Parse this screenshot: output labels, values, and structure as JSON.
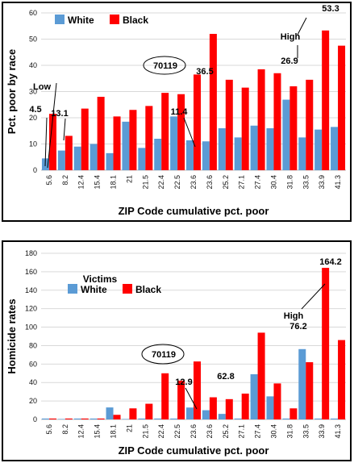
{
  "colors": {
    "white_series": "#5b9bd5",
    "black_series": "#ff0000",
    "grid": "#d9d9d9"
  },
  "chart_data": [
    {
      "type": "bar",
      "ylabel": "Pct. poor by race",
      "xlabel": "ZIP Code cumulative pct. poor",
      "ylim": [
        0,
        60
      ],
      "yticks": [
        0,
        10,
        20,
        30,
        40,
        50,
        60
      ],
      "grid": true,
      "legend_position": "top-left",
      "categories": [
        "5.6",
        "8.2",
        "12.4",
        "15.4",
        "18.1",
        "21",
        "21.5",
        "22.4",
        "22.5",
        "23.6",
        "23.6",
        "25.2",
        "27.1",
        "27.4",
        "30.4",
        "31.8",
        "33.5",
        "33.9",
        "41.3"
      ],
      "series": [
        {
          "name": "White",
          "values": [
            4.5,
            7.5,
            9,
            10,
            6.5,
            18.5,
            8.5,
            12,
            20.5,
            11.4,
            11,
            16,
            12.5,
            17,
            16,
            26.9,
            12.5,
            15.5,
            16.5
          ]
        },
        {
          "name": "Black",
          "values": [
            21.5,
            13.1,
            23.5,
            28,
            20.5,
            23,
            24.5,
            29.5,
            29,
            36.5,
            52,
            34.5,
            31.5,
            38.5,
            37,
            32,
            34.5,
            53.3,
            47.5
          ]
        }
      ],
      "annotations": [
        {
          "text": "Low"
        },
        {
          "text": "4.5"
        },
        {
          "text": "13.1"
        },
        {
          "text": "70119"
        },
        {
          "text": "11.4"
        },
        {
          "text": "36.5"
        },
        {
          "text": "High"
        },
        {
          "text": "26.9"
        },
        {
          "text": "53.3"
        }
      ]
    },
    {
      "type": "bar",
      "ylabel": "Homicide rates",
      "xlabel": "ZIP Code cumulative pct. poor",
      "ylim": [
        0,
        180
      ],
      "yticks": [
        0,
        20,
        40,
        60,
        80,
        100,
        120,
        140,
        160,
        180
      ],
      "grid": true,
      "legend_position": "top-left",
      "legend_title": "Victims",
      "categories": [
        "5.6",
        "8.2",
        "12.4",
        "15.4",
        "18.1",
        "21",
        "21.5",
        "22.4",
        "22.5",
        "23.6",
        "23.6",
        "25.2",
        "27.1",
        "27.4",
        "30.4",
        "31.8",
        "33.5",
        "33.9",
        "41.3"
      ],
      "series": [
        {
          "name": "White",
          "values": [
            1,
            0.5,
            1,
            1,
            13,
            0.5,
            1,
            1,
            1,
            12.9,
            10,
            6,
            1,
            49,
            25,
            1,
            76.2,
            1,
            1
          ]
        },
        {
          "name": "Black",
          "values": [
            1,
            1,
            1,
            1,
            5,
            12,
            17,
            50,
            42,
            62.8,
            24,
            22,
            28,
            94,
            39,
            12,
            62,
            164.2,
            86
          ]
        }
      ],
      "annotations": [
        {
          "text": "70119"
        },
        {
          "text": "12.9"
        },
        {
          "text": "62.8"
        },
        {
          "text": "High"
        },
        {
          "text": "76.2"
        },
        {
          "text": "164.2"
        }
      ]
    }
  ]
}
